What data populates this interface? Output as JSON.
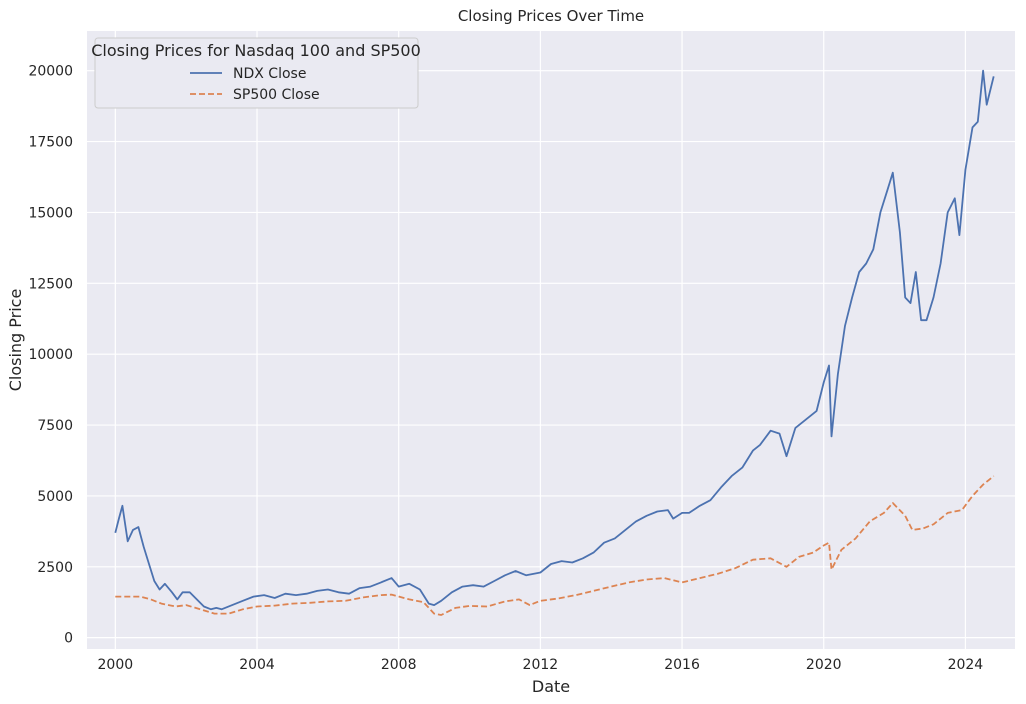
{
  "chart_data": {
    "type": "line",
    "title": "Closing Prices Over Time",
    "xlabel": "Date",
    "ylabel": "Closing Price",
    "xlim": [
      1999.2,
      2025.4
    ],
    "ylim": [
      -400,
      21400
    ],
    "xticks": [
      2000,
      2004,
      2008,
      2012,
      2016,
      2020,
      2024
    ],
    "xtick_labels": [
      "2000",
      "2004",
      "2008",
      "2012",
      "2016",
      "2020",
      "2024"
    ],
    "yticks": [
      0,
      2500,
      5000,
      7500,
      10000,
      12500,
      15000,
      17500,
      20000
    ],
    "ytick_labels": [
      "0",
      "2500",
      "5000",
      "7500",
      "10000",
      "12500",
      "15000",
      "17500",
      "20000"
    ],
    "grid": true,
    "legend": {
      "title": "Closing Prices for Nasdaq 100 and SP500",
      "placement": "upper-left"
    },
    "series": [
      {
        "name": "NDX Close",
        "color": "#4c72b0",
        "style": "solid",
        "x": [
          2000.0,
          2000.1,
          2000.2,
          2000.35,
          2000.5,
          2000.65,
          2000.8,
          2000.95,
          2001.1,
          2001.25,
          2001.4,
          2001.6,
          2001.75,
          2001.9,
          2002.1,
          2002.3,
          2002.5,
          2002.7,
          2002.85,
          2003.0,
          2003.3,
          2003.6,
          2003.9,
          2004.2,
          2004.5,
          2004.8,
          2005.1,
          2005.4,
          2005.7,
          2006.0,
          2006.3,
          2006.6,
          2006.9,
          2007.2,
          2007.5,
          2007.8,
          2008.0,
          2008.3,
          2008.6,
          2008.85,
          2009.0,
          2009.2,
          2009.5,
          2009.8,
          2010.1,
          2010.4,
          2010.7,
          2011.0,
          2011.3,
          2011.6,
          2011.8,
          2012.0,
          2012.3,
          2012.6,
          2012.9,
          2013.2,
          2013.5,
          2013.8,
          2014.1,
          2014.4,
          2014.7,
          2015.0,
          2015.3,
          2015.6,
          2015.75,
          2016.0,
          2016.2,
          2016.5,
          2016.8,
          2017.1,
          2017.4,
          2017.7,
          2018.0,
          2018.2,
          2018.5,
          2018.75,
          2018.95,
          2019.2,
          2019.5,
          2019.8,
          2020.0,
          2020.15,
          2020.22,
          2020.4,
          2020.6,
          2020.8,
          2021.0,
          2021.2,
          2021.4,
          2021.6,
          2021.8,
          2021.95,
          2022.15,
          2022.3,
          2022.45,
          2022.6,
          2022.75,
          2022.9,
          2023.1,
          2023.3,
          2023.5,
          2023.7,
          2023.83,
          2024.0,
          2024.2,
          2024.35,
          2024.5,
          2024.6,
          2024.7,
          2024.8
        ],
        "y": [
          3700,
          4200,
          4650,
          3400,
          3800,
          3900,
          3200,
          2600,
          2000,
          1700,
          1900,
          1600,
          1350,
          1600,
          1600,
          1350,
          1100,
          1000,
          1050,
          1000,
          1150,
          1300,
          1450,
          1500,
          1400,
          1550,
          1500,
          1550,
          1650,
          1700,
          1600,
          1550,
          1750,
          1800,
          1950,
          2100,
          1800,
          1900,
          1700,
          1200,
          1150,
          1300,
          1600,
          1800,
          1850,
          1800,
          2000,
          2200,
          2350,
          2200,
          2250,
          2300,
          2600,
          2700,
          2650,
          2800,
          3000,
          3350,
          3500,
          3800,
          4100,
          4300,
          4450,
          4500,
          4200,
          4400,
          4400,
          4650,
          4850,
          5300,
          5700,
          6000,
          6600,
          6800,
          7300,
          7200,
          6400,
          7400,
          7700,
          8000,
          9000,
          9600,
          7100,
          9300,
          11000,
          12000,
          12900,
          13200,
          13700,
          15000,
          15800,
          16400,
          14300,
          12000,
          11800,
          12900,
          11200,
          11200,
          12000,
          13200,
          15000,
          15500,
          14200,
          16500,
          18000,
          18200,
          20000,
          18800,
          19300,
          19800
        ]
      },
      {
        "name": "SP500 Close",
        "color": "#dd8452",
        "style": "dashed",
        "x": [
          2000.0,
          2000.3,
          2000.7,
          2001.0,
          2001.3,
          2001.7,
          2002.0,
          2002.4,
          2002.8,
          2003.2,
          2003.6,
          2004.0,
          2004.5,
          2005.0,
          2005.5,
          2006.0,
          2006.5,
          2007.0,
          2007.5,
          2007.8,
          2008.3,
          2008.7,
          2009.0,
          2009.2,
          2009.6,
          2010.0,
          2010.5,
          2011.0,
          2011.4,
          2011.7,
          2012.0,
          2012.5,
          2013.0,
          2013.5,
          2014.0,
          2014.5,
          2015.0,
          2015.5,
          2016.0,
          2016.5,
          2017.0,
          2017.5,
          2018.0,
          2018.5,
          2018.95,
          2019.3,
          2019.7,
          2020.0,
          2020.15,
          2020.22,
          2020.5,
          2020.9,
          2021.3,
          2021.7,
          2021.95,
          2022.3,
          2022.5,
          2022.8,
          2023.1,
          2023.5,
          2023.9,
          2024.2,
          2024.5,
          2024.8
        ],
        "y": [
          1450,
          1450,
          1450,
          1350,
          1200,
          1100,
          1150,
          1000,
          850,
          850,
          1000,
          1100,
          1130,
          1200,
          1230,
          1280,
          1300,
          1420,
          1500,
          1520,
          1350,
          1250,
          850,
          800,
          1050,
          1120,
          1100,
          1280,
          1350,
          1150,
          1300,
          1380,
          1500,
          1650,
          1800,
          1950,
          2050,
          2100,
          1950,
          2100,
          2250,
          2450,
          2750,
          2800,
          2500,
          2850,
          3000,
          3250,
          3350,
          2400,
          3100,
          3500,
          4100,
          4400,
          4750,
          4300,
          3800,
          3850,
          4000,
          4400,
          4500,
          5000,
          5400,
          5700
        ]
      }
    ]
  }
}
